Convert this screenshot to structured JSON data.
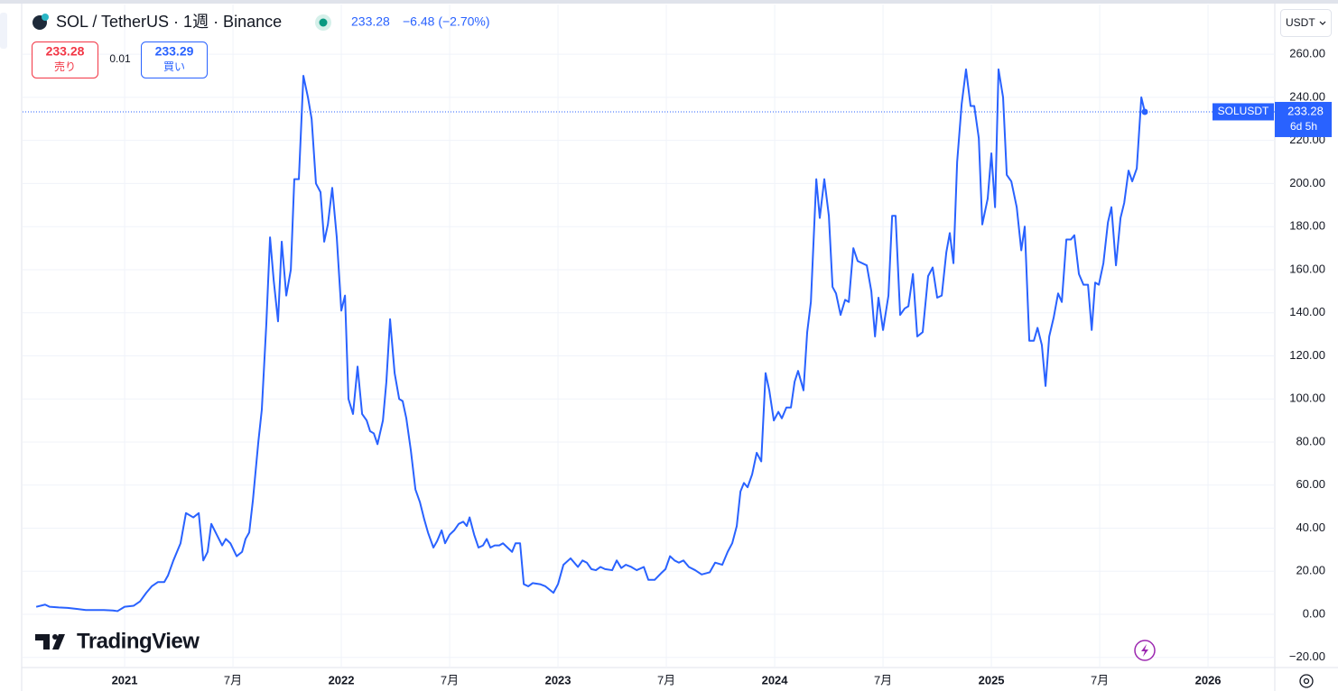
{
  "header": {
    "title": "SOL / TetherUS · 1週 · Binance",
    "last": "233.28",
    "change": "−6.48 (−2.70%)"
  },
  "order": {
    "sell": "233.28",
    "sell_label": "売り",
    "spread": "0.01",
    "buy": "233.29",
    "buy_label": "買い"
  },
  "currency": "USDT",
  "price_label": {
    "price": "233.28",
    "countdown": "6d 5h"
  },
  "brand": "TradingView",
  "chart_data": {
    "type": "line",
    "x": [
      2020.592,
      2020.633,
      2020.654,
      2020.696,
      2020.737,
      2020.779,
      2020.821,
      2020.862,
      2020.904,
      2020.946,
      2020.967,
      2021.0,
      2021.042,
      2021.071,
      2021.1,
      2021.125,
      2021.154,
      2021.183,
      2021.2,
      2021.225,
      2021.258,
      2021.283,
      2021.317,
      2021.342,
      2021.363,
      2021.383,
      2021.4,
      2021.425,
      2021.45,
      2021.467,
      2021.488,
      2021.517,
      2021.542,
      2021.558,
      2021.575,
      2021.592,
      2021.617,
      2021.633,
      2021.654,
      2021.671,
      2021.688,
      2021.708,
      2021.725,
      2021.746,
      2021.767,
      2021.783,
      2021.804,
      2021.825,
      2021.846,
      2021.863,
      2021.883,
      2021.904,
      2021.921,
      2021.938,
      2021.958,
      2021.979,
      2022.0,
      2022.017,
      2022.033,
      2022.054,
      2022.075,
      2022.096,
      2022.117,
      2022.133,
      2022.15,
      2022.167,
      2022.192,
      2022.208,
      2022.225,
      2022.246,
      2022.267,
      2022.283,
      2022.3,
      2022.321,
      2022.342,
      2022.363,
      2022.383,
      2022.4,
      2022.425,
      2022.442,
      2022.463,
      2022.479,
      2022.5,
      2022.521,
      2022.542,
      2022.563,
      2022.579,
      2022.592,
      2022.613,
      2022.633,
      2022.654,
      2022.671,
      2022.688,
      2022.708,
      2022.729,
      2022.746,
      2022.767,
      2022.788,
      2022.804,
      2022.825,
      2022.842,
      2022.863,
      2022.883,
      2022.917,
      2022.942,
      2022.979,
      2023.0,
      2023.025,
      2023.058,
      2023.092,
      2023.113,
      2023.133,
      2023.154,
      2023.175,
      2023.196,
      2023.217,
      2023.25,
      2023.271,
      2023.292,
      2023.313,
      2023.338,
      2023.363,
      2023.396,
      2023.417,
      2023.446,
      2023.475,
      2023.496,
      2023.517,
      2023.538,
      2023.558,
      2023.579,
      2023.604,
      2023.633,
      2023.663,
      2023.7,
      2023.725,
      2023.758,
      2023.783,
      2023.804,
      2023.825,
      2023.842,
      2023.858,
      2023.875,
      2023.896,
      2023.917,
      2023.938,
      2023.958,
      2023.975,
      2023.996,
      2024.017,
      2024.033,
      2024.054,
      2024.075,
      2024.092,
      2024.108,
      2024.133,
      2024.15,
      2024.167,
      2024.192,
      2024.208,
      2024.229,
      2024.25,
      2024.267,
      2024.283,
      2024.304,
      2024.325,
      2024.342,
      2024.363,
      2024.383,
      2024.425,
      2024.446,
      2024.463,
      2024.479,
      2024.5,
      2024.525,
      2024.542,
      2024.558,
      2024.579,
      2024.6,
      2024.617,
      2024.638,
      2024.658,
      2024.683,
      2024.708,
      2024.729,
      2024.75,
      2024.771,
      2024.792,
      2024.808,
      2024.825,
      2024.842,
      2024.863,
      2024.883,
      2024.904,
      2024.921,
      2024.942,
      2024.958,
      2024.983,
      2025.0,
      2025.017,
      2025.033,
      2025.054,
      2025.071,
      2025.092,
      2025.117,
      2025.138,
      2025.154,
      2025.175,
      2025.196,
      2025.213,
      2025.233,
      2025.25,
      2025.267,
      2025.288,
      2025.308,
      2025.325,
      2025.346,
      2025.367,
      2025.383,
      2025.404,
      2025.425,
      2025.446,
      2025.463,
      2025.479,
      2025.496,
      2025.517,
      2025.538,
      2025.554,
      2025.575,
      2025.596,
      2025.613,
      2025.633,
      2025.65,
      2025.671,
      2025.692,
      2025.708
    ],
    "series": [
      {
        "name": "SOLUSDT",
        "color": "#2962ff",
        "values": [
          3.5,
          4.5,
          3.5,
          3.2,
          3,
          2.5,
          2,
          2,
          2,
          1.8,
          1.5,
          3.5,
          4,
          6,
          10,
          13,
          15,
          15,
          18,
          25,
          33,
          47,
          45,
          47,
          25,
          29,
          42,
          37,
          32,
          35,
          33,
          27,
          29,
          35,
          38,
          53,
          80,
          95,
          135,
          175,
          155,
          136,
          173,
          148,
          160,
          202,
          202,
          250,
          240,
          230,
          200,
          196,
          173,
          181,
          198,
          175,
          141,
          148,
          100,
          93,
          115,
          93,
          90,
          85,
          84,
          79,
          90,
          108,
          137,
          112,
          100,
          99,
          91,
          76,
          58,
          52,
          44,
          38,
          31,
          34,
          39,
          33,
          37,
          39,
          42,
          43,
          41,
          45,
          37,
          31,
          32,
          35,
          31,
          32,
          32,
          33,
          31,
          29,
          33,
          33,
          14,
          13,
          14.5,
          14,
          13,
          10,
          14,
          23,
          26,
          22,
          25,
          24,
          21,
          20.5,
          22,
          21,
          20.5,
          25,
          21.5,
          23,
          22,
          20.5,
          22,
          16,
          16,
          19,
          21,
          27,
          25,
          24,
          25,
          22,
          20.5,
          18.5,
          19.5,
          24,
          23,
          29,
          33,
          41,
          57,
          61,
          59,
          65,
          75,
          71,
          112,
          104,
          90,
          94,
          91,
          96,
          96,
          108,
          113,
          104,
          131,
          145,
          202,
          184,
          202,
          185,
          152,
          149,
          139,
          146,
          145,
          170,
          164,
          162,
          150,
          129,
          147,
          132,
          148,
          185,
          185,
          139,
          142,
          143,
          158,
          129,
          131,
          157,
          161,
          147,
          148,
          168,
          177,
          163,
          210,
          237,
          253,
          236,
          236,
          221,
          181,
          193,
          214,
          189,
          253,
          240,
          204,
          201,
          189,
          169,
          180,
          127,
          127,
          133,
          125,
          106,
          129,
          138,
          149,
          145,
          174,
          174,
          176,
          158,
          153,
          153,
          132,
          154,
          153,
          163,
          182,
          189,
          162,
          184,
          191,
          206,
          201,
          207,
          240,
          233.28
        ]
      }
    ],
    "xlim": [
      2020.529,
      2026.308
    ],
    "xticks": [
      {
        "value": 2021,
        "label": "2021"
      },
      {
        "value": 2021.5,
        "label": "7月"
      },
      {
        "value": 2022,
        "label": "2022"
      },
      {
        "value": 2022.5,
        "label": "7月"
      },
      {
        "value": 2023,
        "label": "2023"
      },
      {
        "value": 2023.5,
        "label": "7月"
      },
      {
        "value": 2024,
        "label": "2024"
      },
      {
        "value": 2024.5,
        "label": "7月"
      },
      {
        "value": 2025,
        "label": "2025"
      },
      {
        "value": 2025.5,
        "label": "7月"
      },
      {
        "value": 2026,
        "label": "2026"
      }
    ],
    "ylim": [
      -24.7,
      283.1
    ],
    "yticks": [
      {
        "value": -20,
        "label": "−20.00"
      },
      {
        "value": 0,
        "label": "0.00"
      },
      {
        "value": 20,
        "label": "20.00"
      },
      {
        "value": 40,
        "label": "40.00"
      },
      {
        "value": 60,
        "label": "60.00"
      },
      {
        "value": 80,
        "label": "80.00"
      },
      {
        "value": 100,
        "label": "100.00"
      },
      {
        "value": 120,
        "label": "120.00"
      },
      {
        "value": 140,
        "label": "140.00"
      },
      {
        "value": 160,
        "label": "160.00"
      },
      {
        "value": 180,
        "label": "180.00"
      },
      {
        "value": 200,
        "label": "200.00"
      },
      {
        "value": 220,
        "label": "220.00"
      },
      {
        "value": 240,
        "label": "240.00"
      },
      {
        "value": 260,
        "label": "260.00"
      }
    ],
    "grid": true
  }
}
